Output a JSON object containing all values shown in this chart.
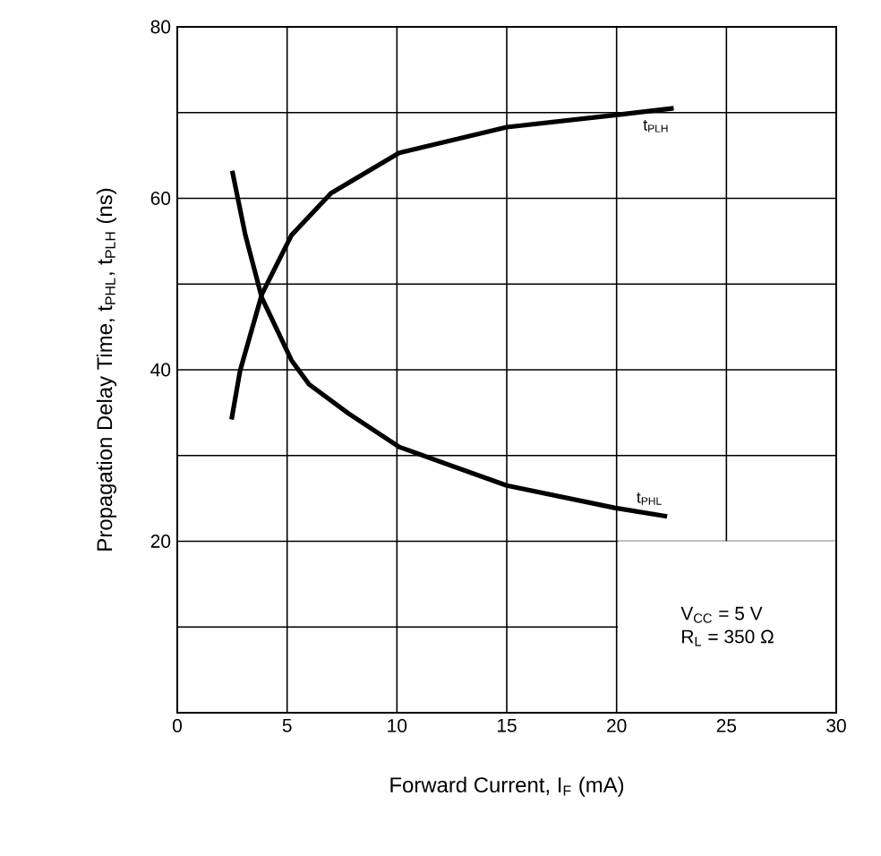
{
  "chart_data": {
    "type": "line",
    "xlabel": "Forward Current, I$_{F}$ (mA)",
    "ylabel": "Propagation Delay Time, t$_{PHL}$, t$_{PLH}$ (ns)",
    "xlim": [
      0,
      30
    ],
    "ylim": [
      0,
      80
    ],
    "xticks": [
      0,
      5,
      10,
      15,
      20,
      25,
      30
    ],
    "yticks": [
      {
        "value": 0,
        "label": null
      },
      {
        "value": 10,
        "label": null
      },
      20,
      {
        "value": 30,
        "label": null
      },
      40,
      {
        "value": 50,
        "label": null
      },
      60,
      {
        "value": 70,
        "label": null
      },
      80
    ],
    "grid": true,
    "legend": false,
    "marker": "none",
    "line_style": "solid",
    "annotations": [
      "V$_{CC}$ = 5 V",
      "R$_{L}$ = 350 Ω"
    ],
    "series": [
      {
        "name": "t$_{PLH}$",
        "color": "#000000",
        "x": [
          2.47,
          2.86,
          3.85,
          5.2,
          7.0,
          10.1,
          15,
          19.9,
          22.6
        ],
        "values": [
          34.2,
          39.9,
          48.8,
          55.7,
          60.6,
          65.3,
          68.3,
          69.7,
          70.5
        ]
      },
      {
        "name": "t$_{PHL}$",
        "color": "#000000",
        "x": [
          2.5,
          3.1,
          3.85,
          5.2,
          6.0,
          7.8,
          10.1,
          15,
          19.9,
          22.3
        ],
        "values": [
          63.2,
          55.7,
          48.4,
          41.1,
          38.3,
          34.9,
          31.0,
          26.5,
          23.9,
          22.9
        ]
      }
    ]
  }
}
